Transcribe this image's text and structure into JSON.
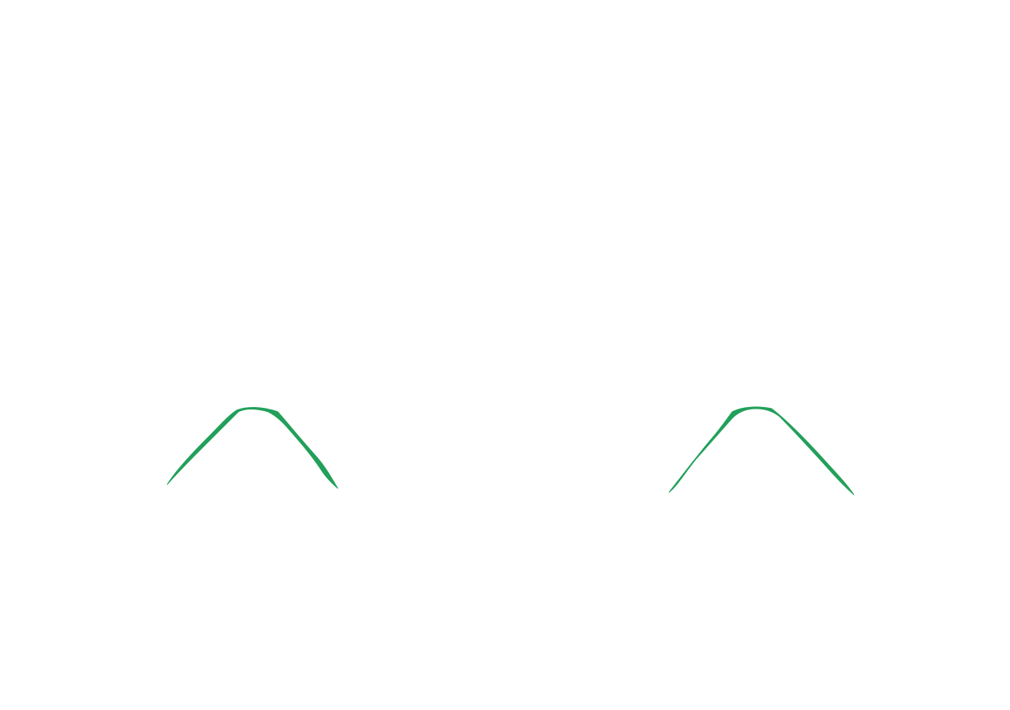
{
  "canvas": {
    "background": "#ffffff",
    "stroke_color": "#22a05a",
    "strokes": [
      "left-arch-stroke",
      "right-arch-stroke"
    ]
  }
}
